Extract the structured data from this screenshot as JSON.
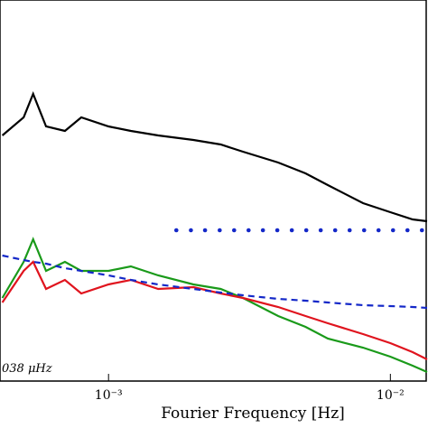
{
  "chart_data": {
    "type": "line",
    "x_label": "Fourier Frequency [Hz]",
    "annotation": "038 μHz",
    "xscale": "log",
    "xlim": [
      0.000412,
      0.0134
    ],
    "ylim": [
      0,
      422
    ],
    "xticks": [
      {
        "value": 0.001,
        "label": "10⁻³"
      },
      {
        "value": 0.01,
        "label": "10⁻²"
      }
    ],
    "series": [
      {
        "color": "#000000",
        "style": "solid",
        "x": [
          0.00042,
          0.0005,
          0.00054,
          0.0006,
          0.0007,
          0.0008,
          0.001,
          0.0012,
          0.0015,
          0.002,
          0.0025,
          0.003,
          0.004,
          0.005,
          0.006,
          0.008,
          0.01,
          0.012,
          0.0135
        ],
        "values": [
          272,
          292,
          318,
          282,
          277,
          292,
          282,
          277,
          272,
          267,
          262,
          254,
          242,
          230,
          217,
          197,
          187,
          179,
          177
        ]
      },
      {
        "color": "#1a9a1a",
        "style": "solid",
        "x": [
          0.00042,
          0.0005,
          0.00054,
          0.0006,
          0.0007,
          0.0008,
          0.001,
          0.0012,
          0.0015,
          0.002,
          0.0025,
          0.003,
          0.004,
          0.005,
          0.006,
          0.008,
          0.01,
          0.012,
          0.0135
        ],
        "values": [
          92,
          132,
          157,
          122,
          132,
          122,
          122,
          127,
          117,
          107,
          102,
          92,
          72,
          60,
          47,
          37,
          27,
          17,
          10
        ]
      },
      {
        "color": "#e0141e",
        "style": "solid",
        "x": [
          0.00042,
          0.0005,
          0.00054,
          0.0006,
          0.0007,
          0.0008,
          0.001,
          0.0012,
          0.0015,
          0.002,
          0.0025,
          0.003,
          0.004,
          0.005,
          0.006,
          0.008,
          0.01,
          0.012,
          0.0135
        ],
        "values": [
          87,
          122,
          132,
          102,
          112,
          97,
          107,
          112,
          102,
          104,
          97,
          92,
          82,
          72,
          64,
          52,
          42,
          32,
          24
        ]
      },
      {
        "color": "#1428c8",
        "style": "dashed",
        "x": [
          0.00042,
          0.0005,
          0.00054,
          0.0006,
          0.0007,
          0.0008,
          0.001,
          0.0012,
          0.0015,
          0.002,
          0.0025,
          0.003,
          0.004,
          0.005,
          0.006,
          0.008,
          0.01,
          0.012,
          0.0135
        ],
        "values": [
          139,
          134,
          132,
          130,
          125,
          122,
          117,
          112,
          107,
          102,
          98,
          95,
          91,
          89,
          87,
          84,
          83,
          82,
          81
        ]
      },
      {
        "color": "#1428c8",
        "style": "dots",
        "x": [
          0.00174,
          0.00196,
          0.0022,
          0.00248,
          0.00279,
          0.00314,
          0.00353,
          0.00397,
          0.00447,
          0.00503,
          0.00566,
          0.00637,
          0.00717,
          0.00807,
          0.00908,
          0.01022,
          0.0115,
          0.01294
        ],
        "values": [
          167,
          167,
          167,
          167,
          167,
          167,
          167,
          167,
          167,
          167,
          167,
          167,
          167,
          167,
          167,
          167,
          167,
          167
        ]
      }
    ]
  }
}
